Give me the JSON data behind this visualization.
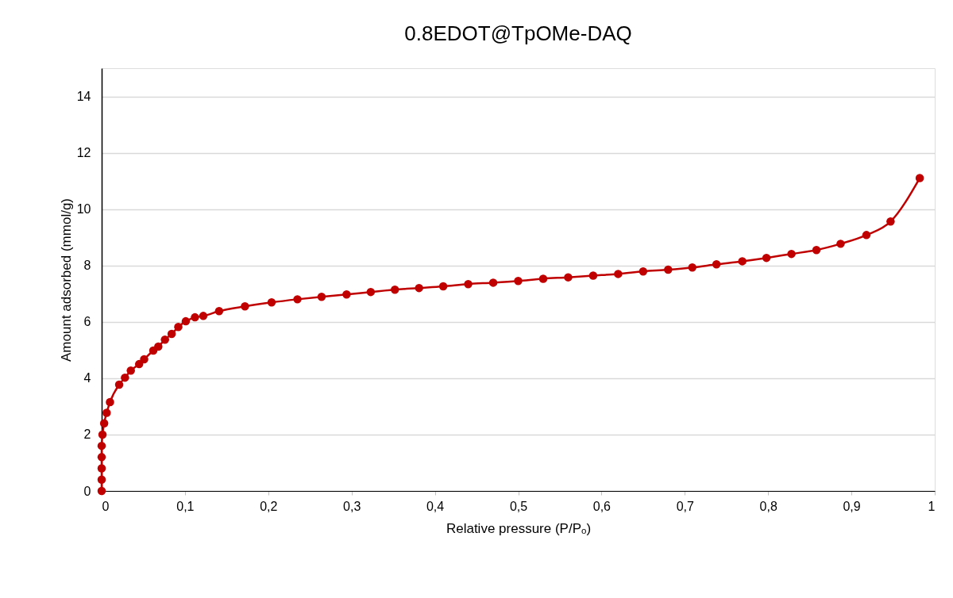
{
  "chart_data": {
    "type": "line",
    "title": "0.8EDOT@TpOMe-DAQ",
    "xlabel": "Relative pressure (P/Pₒ)",
    "ylabel": "Amount adsorbed (mmol/g)",
    "x": [
      0,
      0,
      0,
      0,
      0,
      0.001,
      0.003,
      0.006,
      0.01,
      0.021,
      0.028,
      0.035,
      0.045,
      0.051,
      0.062,
      0.068,
      0.076,
      0.084,
      0.092,
      0.101,
      0.112,
      0.122,
      0.141,
      0.172,
      0.204,
      0.235,
      0.264,
      0.294,
      0.323,
      0.352,
      0.381,
      0.41,
      0.44,
      0.47,
      0.5,
      0.53,
      0.56,
      0.59,
      0.62,
      0.65,
      0.68,
      0.709,
      0.738,
      0.769,
      0.798,
      0.828,
      0.858,
      0.887,
      0.918,
      0.947,
      0.982
    ],
    "series": [
      {
        "color": "#c00000",
        "values": [
          0,
          0.4,
          0.8,
          1.2,
          1.6,
          2.0,
          2.4,
          2.77,
          3.15,
          3.77,
          4.02,
          4.27,
          4.5,
          4.67,
          4.98,
          5.12,
          5.37,
          5.57,
          5.82,
          6.02,
          6.16,
          6.21,
          6.38,
          6.55,
          6.69,
          6.8,
          6.89,
          6.97,
          7.06,
          7.14,
          7.2,
          7.26,
          7.34,
          7.39,
          7.45,
          7.53,
          7.58,
          7.64,
          7.7,
          7.79,
          7.85,
          7.93,
          8.04,
          8.15,
          8.27,
          8.41,
          8.55,
          8.77,
          9.08,
          9.56,
          11.1
        ]
      }
    ],
    "xlim": [
      0,
      1
    ],
    "xticks": [
      0,
      {
        "value": 0.1,
        "label": "0,1"
      },
      {
        "value": 0.2,
        "label": "0,2"
      },
      {
        "value": 0.3,
        "label": "0,3"
      },
      {
        "value": 0.4,
        "label": "0,4"
      },
      {
        "value": 0.5,
        "label": "0,5"
      },
      {
        "value": 0.6,
        "label": "0,6"
      },
      {
        "value": 0.7,
        "label": "0,7"
      },
      {
        "value": 0.8,
        "label": "0,8"
      },
      {
        "value": 0.9,
        "label": "0,9"
      },
      1
    ],
    "ylim": [
      0,
      15
    ],
    "yticks": [
      0,
      2,
      4,
      6,
      8,
      10,
      12,
      14
    ],
    "grid": "y",
    "marker": "circle",
    "line_style": "solid"
  }
}
